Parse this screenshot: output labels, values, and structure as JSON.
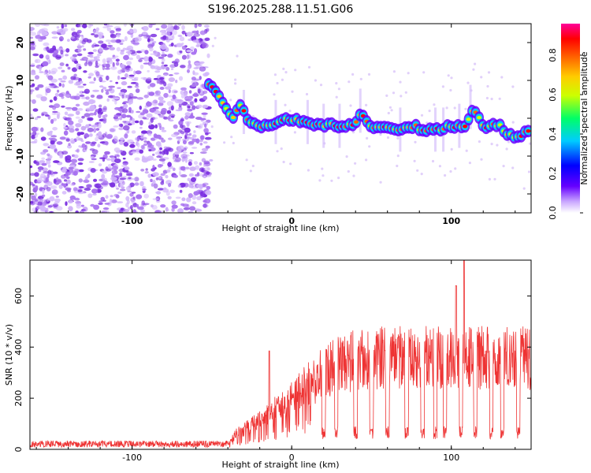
{
  "title": "S196.2025.288.11.51.G06",
  "chart_data": [
    {
      "type": "heatmap",
      "name": "spectrogram",
      "xlabel": "Height of straight line (km)",
      "ylabel": "Frequency (Hz)",
      "xlim": [
        -164,
        150
      ],
      "ylim": [
        -25,
        25
      ],
      "x_ticks": [
        -100,
        0,
        100
      ],
      "y_ticks": [
        -20,
        -10,
        0,
        10,
        20
      ],
      "colorbar": {
        "label": "Normalized spectral amplitude",
        "range": [
          0.0,
          0.96
        ],
        "ticks": [
          0.0,
          0.2,
          0.4,
          0.6,
          0.8
        ]
      },
      "noise_region_x": [
        -164,
        -52
      ],
      "signal_track": {
        "x": [
          -52,
          -46,
          -42,
          -38,
          -32,
          -26,
          -20,
          -10,
          0,
          10,
          20,
          30,
          40,
          43,
          50,
          60,
          68,
          75,
          85,
          95,
          100,
          110,
          112,
          120,
          130,
          138,
          145,
          150
        ],
        "freq": [
          9,
          6,
          3,
          0,
          3,
          -1,
          -2,
          -1,
          0,
          -1,
          -2,
          -2,
          -2,
          2,
          -2,
          -2,
          -3,
          -2,
          -3,
          -3,
          -2,
          -2,
          3,
          -2,
          -2,
          -5,
          -4,
          -3
        ]
      }
    },
    {
      "type": "line",
      "name": "snr",
      "xlabel": "Height of straight line (km)",
      "ylabel": "SNR (10 * v/v)",
      "xlim": [
        -164,
        150
      ],
      "ylim": [
        0,
        740
      ],
      "x_ticks": [
        -100,
        0,
        100
      ],
      "y_ticks": [
        0,
        200,
        400,
        600
      ],
      "color": "#ee3333",
      "envelope_x": [
        -164,
        -40,
        -35,
        -20,
        -10,
        0,
        10,
        20,
        30,
        40,
        60,
        80,
        100,
        120,
        150
      ],
      "envelope_y": [
        20,
        22,
        70,
        130,
        190,
        230,
        300,
        350,
        390,
        410,
        420,
        420,
        420,
        420,
        420
      ],
      "dropouts_x": [
        20,
        28,
        40,
        50,
        60,
        72,
        82,
        90,
        96,
        106,
        115,
        125,
        132,
        142
      ],
      "spikes": [
        {
          "x": 103,
          "y": 640
        },
        {
          "x": 108,
          "y": 740
        },
        {
          "x": -14,
          "y": 385
        }
      ]
    }
  ]
}
